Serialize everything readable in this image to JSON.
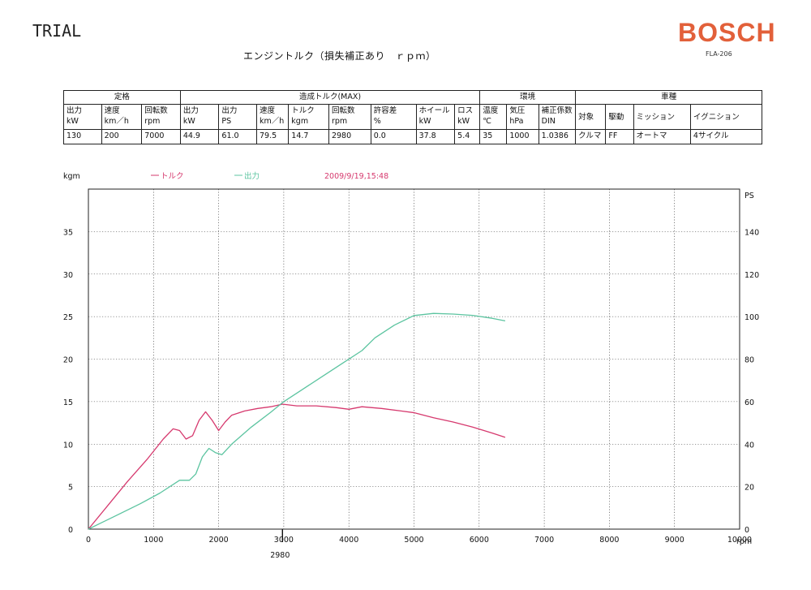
{
  "header": {
    "trial": "TRIAL",
    "title": "エンジントルク（損失補正あり　ｒｐｍ）",
    "brand": "BOSCH",
    "model": "FLA-206"
  },
  "spec_table": {
    "groups": [
      "定格",
      "造成トルク(MAX)",
      "環境",
      "車種"
    ],
    "rated": {
      "heads": [
        [
          "出力",
          "kW"
        ],
        [
          "速度",
          "km／h"
        ],
        [
          "回転数",
          "rpm"
        ]
      ],
      "values": [
        "130",
        "200",
        "7000"
      ]
    },
    "max": {
      "heads": [
        [
          "出力",
          "kW"
        ],
        [
          "出力",
          "PS"
        ],
        [
          "速度",
          "km／h"
        ],
        [
          "トルク",
          "kgm"
        ],
        [
          "回転数",
          "rpm"
        ],
        [
          "許容差",
          "%"
        ],
        [
          "ホイール",
          "kW"
        ],
        [
          "ロス",
          "kW"
        ]
      ],
      "values": [
        "44.9",
        "61.0",
        "79.5",
        "14.7",
        "2980",
        "0.0",
        "37.8",
        "5.4"
      ]
    },
    "env": {
      "heads": [
        [
          "温度",
          "℃"
        ],
        [
          "気圧",
          "hPa"
        ],
        [
          "補正係数",
          "DIN"
        ]
      ],
      "values": [
        "35",
        "1000",
        "1.0386"
      ]
    },
    "vehicle": {
      "heads": [
        "対象",
        "駆動",
        "ミッション",
        "イグニション"
      ],
      "values": [
        "クルマ",
        "FF",
        "オートマ",
        "4サイクル"
      ]
    }
  },
  "chart_data": {
    "type": "line",
    "left_axis_label": "kgm",
    "right_axis_label": "PS",
    "x_axis_label": "rpm",
    "timestamp": "2009/9/19,15:48",
    "xlim": [
      0,
      10000
    ],
    "ylim_left": [
      0,
      40
    ],
    "ylim_right": [
      0,
      160
    ],
    "x_ticks": [
      0,
      1000,
      2000,
      3000,
      4000,
      5000,
      6000,
      7000,
      8000,
      9000,
      10000
    ],
    "y_ticks_left": [
      0,
      5,
      10,
      15,
      20,
      25,
      30,
      35
    ],
    "y_ticks_right": [
      0,
      20,
      40,
      60,
      80,
      100,
      120,
      140
    ],
    "marker": {
      "x": 2980,
      "label": "2980"
    },
    "colors": {
      "torque": "#d6396e",
      "power": "#5cc4a0"
    },
    "series": [
      {
        "name": "トルク",
        "axis": "left",
        "points": [
          [
            0,
            0
          ],
          [
            300,
            2.8
          ],
          [
            600,
            5.6
          ],
          [
            900,
            8.2
          ],
          [
            1150,
            10.6
          ],
          [
            1300,
            11.8
          ],
          [
            1400,
            11.6
          ],
          [
            1500,
            10.6
          ],
          [
            1600,
            11.0
          ],
          [
            1700,
            12.8
          ],
          [
            1800,
            13.8
          ],
          [
            1900,
            12.8
          ],
          [
            2000,
            11.6
          ],
          [
            2100,
            12.6
          ],
          [
            2200,
            13.4
          ],
          [
            2400,
            13.9
          ],
          [
            2600,
            14.2
          ],
          [
            2800,
            14.4
          ],
          [
            2980,
            14.7
          ],
          [
            3200,
            14.5
          ],
          [
            3500,
            14.5
          ],
          [
            3800,
            14.3
          ],
          [
            4000,
            14.1
          ],
          [
            4200,
            14.4
          ],
          [
            4500,
            14.2
          ],
          [
            4800,
            13.9
          ],
          [
            5000,
            13.7
          ],
          [
            5300,
            13.1
          ],
          [
            5600,
            12.6
          ],
          [
            5900,
            12.0
          ],
          [
            6200,
            11.3
          ],
          [
            6400,
            10.8
          ]
        ]
      },
      {
        "name": "出力",
        "axis": "right",
        "points": [
          [
            0,
            0
          ],
          [
            400,
            6
          ],
          [
            800,
            12
          ],
          [
            1100,
            17
          ],
          [
            1400,
            23
          ],
          [
            1550,
            23
          ],
          [
            1650,
            26
          ],
          [
            1750,
            34
          ],
          [
            1850,
            38
          ],
          [
            1950,
            36
          ],
          [
            2050,
            35
          ],
          [
            2200,
            40
          ],
          [
            2500,
            48
          ],
          [
            2800,
            55
          ],
          [
            3000,
            60
          ],
          [
            3300,
            66
          ],
          [
            3600,
            72
          ],
          [
            3900,
            78
          ],
          [
            4200,
            84
          ],
          [
            4400,
            90
          ],
          [
            4700,
            96
          ],
          [
            5000,
            100.5
          ],
          [
            5300,
            101.5
          ],
          [
            5600,
            101.2
          ],
          [
            5900,
            100.6
          ],
          [
            6200,
            99.2
          ],
          [
            6400,
            98
          ]
        ]
      }
    ]
  }
}
